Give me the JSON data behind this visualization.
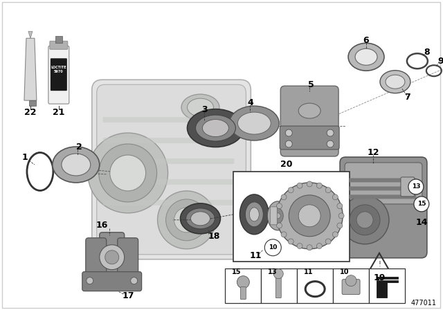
{
  "diagram_id": "477011",
  "bg_color": "#ffffff",
  "text_color": "#000000",
  "fig_width": 6.4,
  "fig_height": 4.48,
  "dpi": 100,
  "gray_housing": "#c8cac8",
  "gray_part": "#a8aaa8",
  "gray_dark": "#606060",
  "gray_light": "#e0e2e0",
  "gray_seal": "#505050",
  "gray_washer": "#909090",
  "label_size": 8.5
}
